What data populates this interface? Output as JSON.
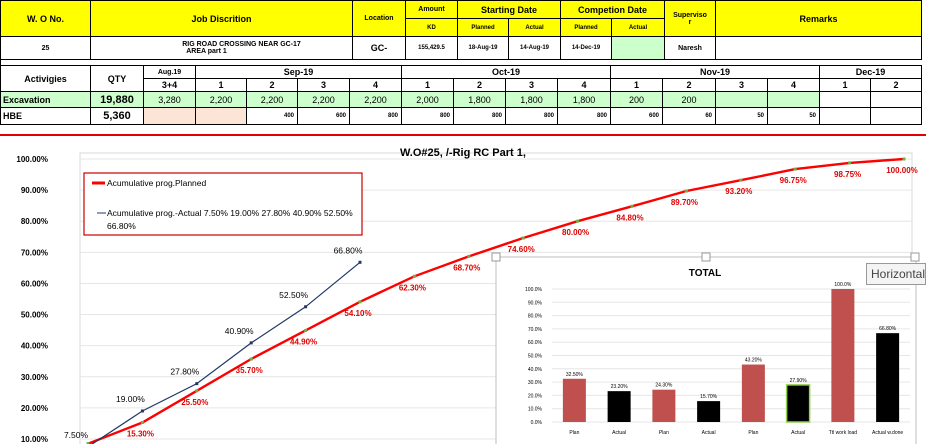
{
  "header": {
    "wo_no": "W. O No.",
    "job_description": "Job Discrition",
    "location": "Location",
    "amount": "Amount",
    "kd": "KD",
    "starting_date": "Starting Date",
    "planned": "Planned",
    "actual": "Actual",
    "completion_date": "Competion Date",
    "supervisor_1": "Superviso",
    "supervisor_2": "r",
    "remarks": "Remarks"
  },
  "job_row": {
    "wo": "25",
    "description_1": "RIG ROAD CROSSING NEAR GC-17",
    "description_2": "AREA part 1",
    "location": "GC-",
    "amount": "155,429.5",
    "start_planned": "18-Aug-19",
    "start_actual": "14-Aug-19",
    "completion_planned": "14-Dec-19",
    "completion_actual": "",
    "supervisor": "Naresh",
    "remarks": ""
  },
  "activity_header": {
    "activities": "Activigies",
    "qty": "QTY",
    "months": [
      {
        "name": "Aug.19",
        "weeks": [
          "3+4"
        ]
      },
      {
        "name": "Sep-19",
        "weeks": [
          "1",
          "2",
          "3",
          "4"
        ]
      },
      {
        "name": "Oct-19",
        "weeks": [
          "1",
          "2",
          "3",
          "4"
        ]
      },
      {
        "name": "Nov-19",
        "weeks": [
          "1",
          "2",
          "3",
          "4"
        ]
      },
      {
        "name": "Dec-19",
        "weeks": [
          "1",
          "2"
        ]
      }
    ]
  },
  "activities": [
    {
      "name": "Excavation",
      "qty": "19,880",
      "values": [
        "3,280",
        "2,200",
        "2,200",
        "2,200",
        "2,200",
        "2,000",
        "1,800",
        "1,800",
        "1,800",
        "200",
        "200",
        "",
        "",
        "",
        ""
      ]
    },
    {
      "name": "HBE",
      "qty": "5,360",
      "values": [
        "",
        "",
        "400",
        "600",
        "800",
        "800",
        "800",
        "800",
        "800",
        "600",
        "60",
        "50",
        "50",
        "",
        ""
      ]
    }
  ],
  "chart_data": [
    {
      "type": "line",
      "title": "W.O#25,        /-Rig RC Part 1,",
      "ylim": [
        10,
        100
      ],
      "y_ticks": [
        "10.00%",
        "20.00%",
        "30.00%",
        "40.00%",
        "50.00%",
        "60.00%",
        "70.00%",
        "80.00%",
        "90.00%",
        "100.00%"
      ],
      "series": [
        {
          "name": "Acumulative prog.Planned",
          "color": "#ff0000",
          "values": [
            8.5,
            15.3,
            25.5,
            35.7,
            44.9,
            54.1,
            62.3,
            68.7,
            74.6,
            80.0,
            84.8,
            89.7,
            93.2,
            96.75,
            98.75,
            100.0
          ],
          "labels": [
            "",
            "15.30%",
            "25.50%",
            "35.70%",
            "44.90%",
            "54.10%",
            "62.30%",
            "68.70%",
            "74.60%",
            "80.00%",
            "84.80%",
            "89.70%",
            "93.20%",
            "96.75%",
            "98.75%",
            "100.00%"
          ]
        },
        {
          "name": "Acumulative prog.-Actual 7.50% 19.00% 27.80% 40.90% 52.50% 66.80%",
          "color": "#1f3864",
          "values": [
            7.5,
            19.0,
            27.8,
            40.9,
            52.5,
            66.8
          ],
          "labels": [
            "7.50%",
            "19.00%",
            "27.80%",
            "40.90%",
            "52.50%",
            "66.80%"
          ]
        }
      ],
      "legend": [
        "Acumulative prog.Planned",
        "Acumulative prog.-Actual 7.50% 19.00% 27.80% 40.90% 52.50%",
        "66.80%"
      ]
    },
    {
      "type": "bar",
      "title": "TOTAL",
      "ylim": [
        0,
        100
      ],
      "y_ticks": [
        "0.0%",
        "10.0%",
        "20.0%",
        "30.0%",
        "40.0%",
        "50.0%",
        "60.0%",
        "70.0%",
        "80.0%",
        "90.0%",
        "100.0%"
      ],
      "categories": [
        "Plan",
        "Actual",
        "Plan",
        "Actual",
        "Plan",
        "Actual",
        "Ttl work load",
        "Actual w.done"
      ],
      "values": [
        32.5,
        23.2,
        24.3,
        15.7,
        43.2,
        27.9,
        100.0,
        66.8
      ],
      "labels": [
        "32.50%",
        "23.20%",
        "24.30%",
        "15.70%",
        "43.20%",
        "27.90%",
        "100.0%",
        "66.80%"
      ],
      "colors": [
        "#c0504d",
        "#000000",
        "#c0504d",
        "#000000",
        "#c0504d",
        "#000000",
        "#c0504d",
        "#000000"
      ]
    }
  ],
  "tooltip": "Horizontal"
}
